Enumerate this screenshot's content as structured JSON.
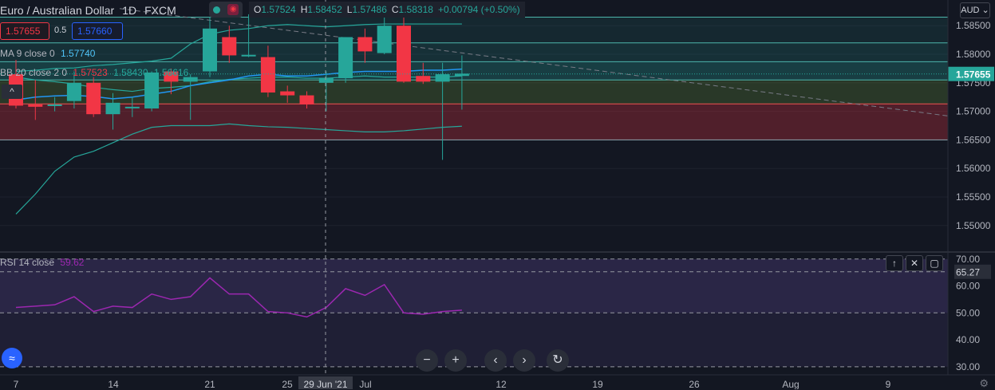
{
  "header": {
    "symbol": "Euro / Australian Dollar",
    "interval": "1D",
    "source": "FXCM",
    "ohlc": {
      "o_label": "O",
      "o": "1.57524",
      "h_label": "H",
      "h": "1.58452",
      "l_label": "L",
      "l": "1.57486",
      "c_label": "C",
      "c": "1.58318",
      "change": "+0.00794 (+0.50%)"
    },
    "currency": "AUD"
  },
  "trade": {
    "sell": "1.57655",
    "spread": "0.5",
    "buy": "1.57660"
  },
  "indicators": {
    "ma": {
      "name": "MA 9 close 0",
      "value": "1.57740"
    },
    "bb": {
      "name": "BB 20 close 2 0",
      "v1": "1.57523",
      "v2": "1.58430",
      "v3": "1.56616"
    },
    "rsi": {
      "name": "RSI 14 close",
      "value": "59.62"
    }
  },
  "last_price": "1.57655",
  "rsi_label_value": "65.27",
  "crosshair_date": "29 Jun '21",
  "nav": {
    "zoom_out": "−",
    "zoom_in": "+",
    "back": "‹",
    "forward": "›",
    "reset": "↻"
  },
  "colors": {
    "up": "#26a69a",
    "down": "#f23645",
    "ma": "#2196f3",
    "bb": "#26a69a",
    "rsi": "#9c27b0"
  },
  "chart_data": {
    "type": "candlestick",
    "price_axis": {
      "ticks": [
        "1.58500",
        "1.58000",
        "1.57500",
        "1.57000",
        "1.56500",
        "1.56000",
        "1.55500",
        "1.55000"
      ],
      "range": [
        1.5455,
        1.5895
      ]
    },
    "rsi_axis": {
      "ticks": [
        "70.00",
        "60.00",
        "50.00",
        "40.00",
        "30.00"
      ],
      "range": [
        27,
        72
      ],
      "levels": [
        70,
        65.27,
        50,
        30
      ]
    },
    "x_ticks": [
      "7",
      "14",
      "21",
      "25",
      "Jul",
      "12",
      "19",
      "26",
      "Aug",
      "9"
    ],
    "candles": [
      {
        "o": 1.5765,
        "h": 1.579,
        "l": 1.5705,
        "c": 1.571
      },
      {
        "o": 1.5712,
        "h": 1.5755,
        "l": 1.5685,
        "c": 1.5708
      },
      {
        "o": 1.571,
        "h": 1.5725,
        "l": 1.57,
        "c": 1.5712
      },
      {
        "o": 1.5718,
        "h": 1.577,
        "l": 1.5705,
        "c": 1.575
      },
      {
        "o": 1.575,
        "h": 1.576,
        "l": 1.569,
        "c": 1.5695
      },
      {
        "o": 1.5695,
        "h": 1.5732,
        "l": 1.5668,
        "c": 1.5715
      },
      {
        "o": 1.5706,
        "h": 1.5725,
        "l": 1.569,
        "c": 1.5708
      },
      {
        "o": 1.5705,
        "h": 1.577,
        "l": 1.57,
        "c": 1.5768
      },
      {
        "o": 1.577,
        "h": 1.5775,
        "l": 1.573,
        "c": 1.5752
      },
      {
        "o": 1.5752,
        "h": 1.5765,
        "l": 1.5685,
        "c": 1.576
      },
      {
        "o": 1.577,
        "h": 1.5865,
        "l": 1.576,
        "c": 1.5845
      },
      {
        "o": 1.583,
        "h": 1.585,
        "l": 1.5785,
        "c": 1.5798
      },
      {
        "o": 1.5797,
        "h": 1.587,
        "l": 1.5795,
        "c": 1.5799
      },
      {
        "o": 1.5795,
        "h": 1.5815,
        "l": 1.5725,
        "c": 1.5733
      },
      {
        "o": 1.5735,
        "h": 1.5745,
        "l": 1.5715,
        "c": 1.5728
      },
      {
        "o": 1.5728,
        "h": 1.5735,
        "l": 1.5705,
        "c": 1.5712
      },
      {
        "o": 1.575,
        "h": 1.577,
        "l": 1.57,
        "c": 1.5758
      },
      {
        "o": 1.5758,
        "h": 1.583,
        "l": 1.575,
        "c": 1.583
      },
      {
        "o": 1.583,
        "h": 1.5845,
        "l": 1.5785,
        "c": 1.5805
      },
      {
        "o": 1.5802,
        "h": 1.588,
        "l": 1.58,
        "c": 1.585
      },
      {
        "o": 1.585,
        "h": 1.5878,
        "l": 1.575,
        "c": 1.5752
      },
      {
        "o": 1.5762,
        "h": 1.5785,
        "l": 1.5748,
        "c": 1.5752
      },
      {
        "o": 1.5752,
        "h": 1.5785,
        "l": 1.5615,
        "c": 1.5765
      },
      {
        "o": 1.5762,
        "h": 1.5798,
        "l": 1.5703,
        "c": 1.5766
      }
    ],
    "bb_upper": [
      1.577,
      1.5772,
      1.5775,
      1.5776,
      1.578,
      1.5782,
      1.5785,
      1.5788,
      1.5793,
      1.5818,
      1.5835,
      1.5842,
      1.5845,
      1.585,
      1.5852,
      1.585,
      1.5848,
      1.585,
      1.5852,
      1.5853,
      1.5853,
      1.5853,
      1.5853,
      1.5853
    ],
    "bb_mid": [
      1.576,
      1.5755,
      1.5752,
      1.5748,
      1.5742,
      1.5738,
      1.5735,
      1.574,
      1.5742,
      1.5745,
      1.5752,
      1.5756,
      1.5758,
      1.576,
      1.576,
      1.5758,
      1.5758,
      1.576,
      1.5762,
      1.576,
      1.576,
      1.576,
      1.576,
      1.5762
    ],
    "bb_lower": [
      1.552,
      1.5555,
      1.5595,
      1.562,
      1.563,
      1.5645,
      1.566,
      1.5672,
      1.5675,
      1.5675,
      1.5675,
      1.5678,
      1.5675,
      1.5673,
      1.5672,
      1.567,
      1.5668,
      1.5666,
      1.5664,
      1.5664,
      1.5666,
      1.5669,
      1.5672,
      1.5674
    ],
    "ma": [
      1.572,
      1.5725,
      1.5727,
      1.5728,
      1.5726,
      1.5722,
      1.5725,
      1.573,
      1.5735,
      1.5745,
      1.575,
      1.5755,
      1.5762,
      1.5765,
      1.5762,
      1.5762,
      1.5765,
      1.5768,
      1.577,
      1.577,
      1.577,
      1.5772,
      1.5772,
      1.5774
    ],
    "rsi": [
      52.0,
      52.5,
      53.0,
      56.0,
      50.5,
      52.5,
      52.0,
      57.0,
      55.0,
      56.0,
      63.0,
      57.0,
      57.0,
      50.5,
      50.0,
      48.5,
      52.0,
      59.0,
      56.5,
      60.5,
      50.0,
      49.5,
      50.5,
      51.0
    ]
  }
}
